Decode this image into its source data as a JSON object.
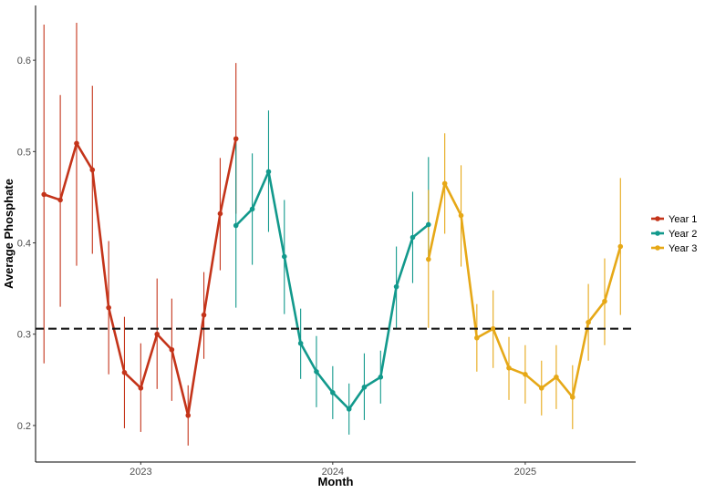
{
  "chart_data": {
    "type": "line",
    "title": "",
    "xlabel": "Month",
    "ylabel": "Average Phosphate",
    "xlim": [
      "2022-06-15",
      "2025-07-30"
    ],
    "ylim": [
      0.16,
      0.66
    ],
    "x_ticks": [
      "2023-01-01",
      "2024-01-01",
      "2025-01-01"
    ],
    "x_tick_labels": [
      "2023",
      "2024",
      "2025"
    ],
    "y_ticks": [
      0.2,
      0.3,
      0.4,
      0.5,
      0.6
    ],
    "y_tick_labels": [
      "0.2",
      "0.3",
      "0.4",
      "0.5",
      "0.6"
    ],
    "grid": false,
    "legend_position": "right",
    "reference_line": {
      "type": "horizontal",
      "y": 0.306,
      "style": "dashed",
      "color": "#1a1a1a"
    },
    "series": [
      {
        "name": "Year 1",
        "color": "#C4341A",
        "x": [
          "2022-07-01",
          "2022-08-01",
          "2022-09-01",
          "2022-10-01",
          "2022-11-01",
          "2022-12-01",
          "2023-01-01",
          "2023-02-01",
          "2023-03-01",
          "2023-04-01",
          "2023-05-01",
          "2023-06-01",
          "2023-07-01"
        ],
        "y": [
          0.453,
          0.447,
          0.509,
          0.48,
          0.329,
          0.258,
          0.241,
          0.3,
          0.283,
          0.211,
          0.321,
          0.432,
          0.514
        ],
        "lower": [
          0.268,
          0.33,
          0.375,
          0.388,
          0.256,
          0.197,
          0.193,
          0.24,
          0.227,
          0.178,
          0.273,
          0.37,
          0.432
        ],
        "upper": [
          0.639,
          0.562,
          0.641,
          0.572,
          0.402,
          0.319,
          0.29,
          0.361,
          0.339,
          0.244,
          0.368,
          0.493,
          0.597
        ]
      },
      {
        "name": "Year 2",
        "color": "#12998C",
        "x": [
          "2023-07-01",
          "2023-08-01",
          "2023-09-01",
          "2023-10-01",
          "2023-11-01",
          "2023-12-01",
          "2024-01-01",
          "2024-02-01",
          "2024-03-01",
          "2024-04-01",
          "2024-05-01",
          "2024-06-01",
          "2024-07-01"
        ],
        "y": [
          0.419,
          0.437,
          0.478,
          0.385,
          0.29,
          0.259,
          0.236,
          0.218,
          0.242,
          0.253,
          0.352,
          0.406,
          0.42
        ],
        "lower": [
          0.329,
          0.376,
          0.412,
          0.322,
          0.251,
          0.22,
          0.207,
          0.19,
          0.206,
          0.224,
          0.307,
          0.356,
          0.382
        ],
        "upper": [
          0.51,
          0.498,
          0.545,
          0.447,
          0.328,
          0.298,
          0.265,
          0.246,
          0.279,
          0.282,
          0.396,
          0.456,
          0.494
        ]
      },
      {
        "name": "Year 3",
        "color": "#E6A817",
        "x": [
          "2024-07-01",
          "2024-08-01",
          "2024-09-01",
          "2024-10-01",
          "2024-11-01",
          "2024-12-01",
          "2025-01-01",
          "2025-02-01",
          "2025-03-01",
          "2025-04-01",
          "2025-05-01",
          "2025-06-01",
          "2025-07-01"
        ],
        "y": [
          0.382,
          0.465,
          0.43,
          0.296,
          0.306,
          0.263,
          0.256,
          0.241,
          0.253,
          0.231,
          0.313,
          0.336,
          0.396
        ],
        "lower": [
          0.307,
          0.41,
          0.374,
          0.259,
          0.263,
          0.228,
          0.224,
          0.211,
          0.218,
          0.196,
          0.271,
          0.288,
          0.321
        ],
        "upper": [
          0.458,
          0.52,
          0.485,
          0.333,
          0.348,
          0.297,
          0.288,
          0.271,
          0.288,
          0.266,
          0.355,
          0.383,
          0.471
        ]
      }
    ]
  }
}
